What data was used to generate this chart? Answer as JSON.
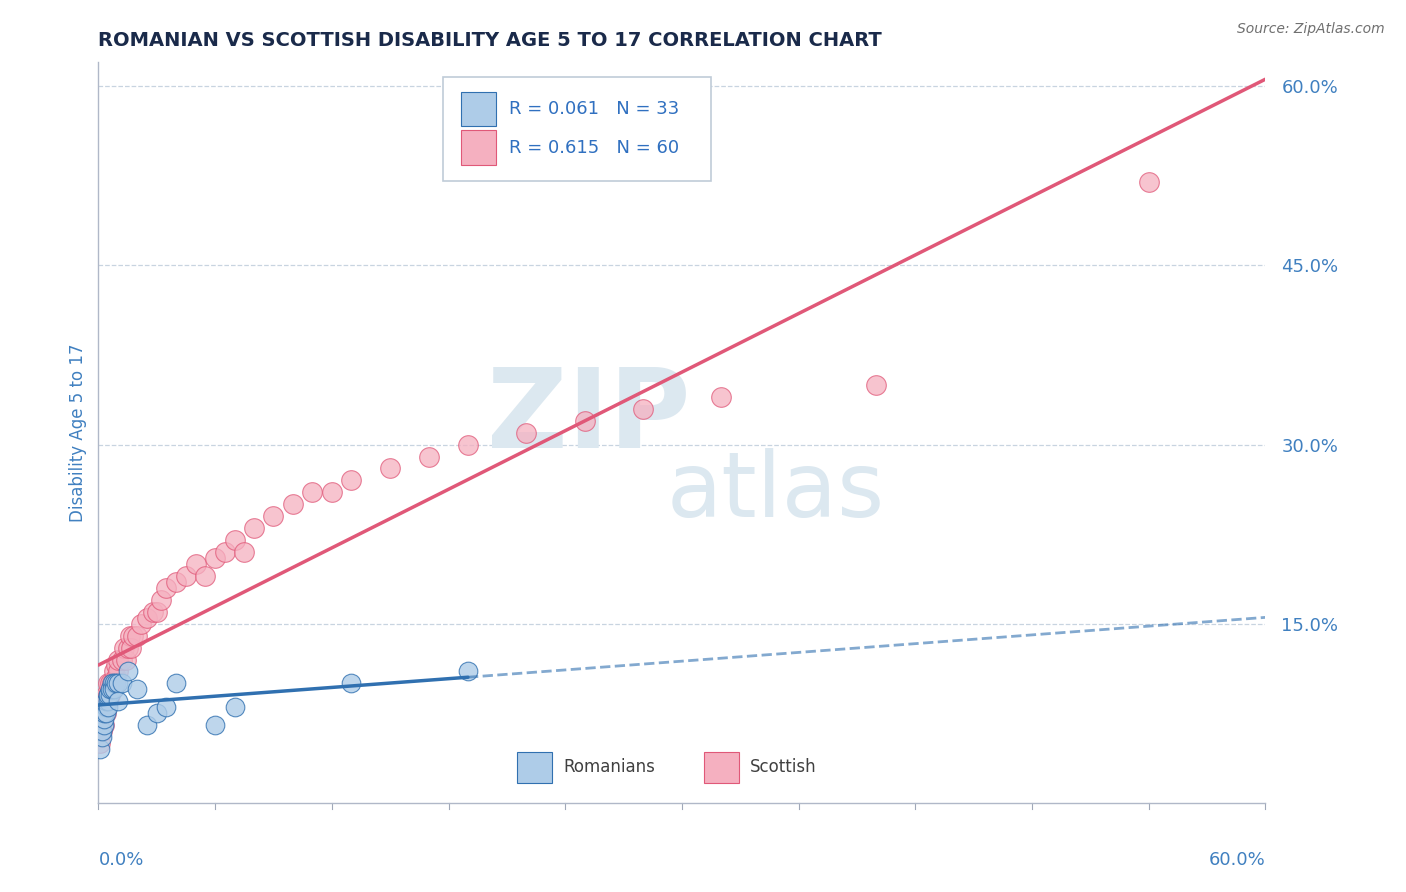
{
  "title": "ROMANIAN VS SCOTTISH DISABILITY AGE 5 TO 17 CORRELATION CHART",
  "source": "Source: ZipAtlas.com",
  "ylabel": "Disability Age 5 to 17",
  "xlim": [
    0.0,
    0.6
  ],
  "ylim": [
    0.0,
    0.62
  ],
  "r_romanian": 0.061,
  "n_romanian": 33,
  "r_scottish": 0.615,
  "n_scottish": 60,
  "color_romanian": "#aecce8",
  "color_scottish": "#f5b0c0",
  "line_color_romanian": "#3070b0",
  "line_color_scottish": "#e05878",
  "legend_text_color": "#3070c0",
  "title_color": "#1a2a4a",
  "axis_label_color": "#4080c0",
  "watermark_color": "#dce8f0",
  "romanian_x": [
    0.001,
    0.002,
    0.002,
    0.003,
    0.003,
    0.003,
    0.004,
    0.004,
    0.004,
    0.005,
    0.005,
    0.005,
    0.005,
    0.006,
    0.006,
    0.007,
    0.007,
    0.008,
    0.008,
    0.009,
    0.01,
    0.01,
    0.012,
    0.015,
    0.02,
    0.025,
    0.03,
    0.035,
    0.04,
    0.06,
    0.07,
    0.13,
    0.19
  ],
  "romanian_y": [
    0.045,
    0.055,
    0.06,
    0.065,
    0.07,
    0.075,
    0.08,
    0.075,
    0.085,
    0.09,
    0.085,
    0.08,
    0.09,
    0.09,
    0.095,
    0.1,
    0.095,
    0.1,
    0.095,
    0.1,
    0.1,
    0.085,
    0.1,
    0.11,
    0.095,
    0.065,
    0.075,
    0.08,
    0.1,
    0.065,
    0.08,
    0.1,
    0.11
  ],
  "scottish_x": [
    0.001,
    0.001,
    0.002,
    0.002,
    0.003,
    0.003,
    0.003,
    0.004,
    0.004,
    0.004,
    0.005,
    0.005,
    0.005,
    0.006,
    0.006,
    0.007,
    0.007,
    0.008,
    0.008,
    0.009,
    0.009,
    0.01,
    0.01,
    0.012,
    0.013,
    0.014,
    0.015,
    0.016,
    0.017,
    0.018,
    0.02,
    0.022,
    0.025,
    0.028,
    0.03,
    0.032,
    0.035,
    0.04,
    0.045,
    0.05,
    0.055,
    0.06,
    0.065,
    0.07,
    0.075,
    0.08,
    0.09,
    0.1,
    0.11,
    0.12,
    0.13,
    0.15,
    0.17,
    0.19,
    0.22,
    0.25,
    0.28,
    0.32,
    0.4,
    0.54
  ],
  "scottish_y": [
    0.05,
    0.06,
    0.06,
    0.07,
    0.065,
    0.075,
    0.08,
    0.075,
    0.085,
    0.09,
    0.09,
    0.085,
    0.1,
    0.09,
    0.1,
    0.1,
    0.095,
    0.1,
    0.11,
    0.105,
    0.115,
    0.11,
    0.12,
    0.12,
    0.13,
    0.12,
    0.13,
    0.14,
    0.13,
    0.14,
    0.14,
    0.15,
    0.155,
    0.16,
    0.16,
    0.17,
    0.18,
    0.185,
    0.19,
    0.2,
    0.19,
    0.205,
    0.21,
    0.22,
    0.21,
    0.23,
    0.24,
    0.25,
    0.26,
    0.26,
    0.27,
    0.28,
    0.29,
    0.3,
    0.31,
    0.32,
    0.33,
    0.34,
    0.35,
    0.52
  ]
}
